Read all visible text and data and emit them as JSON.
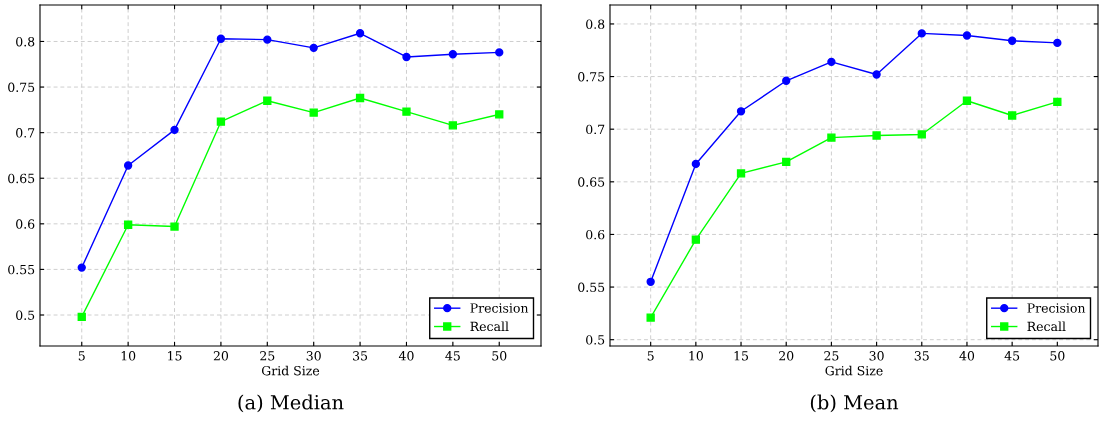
{
  "chart_data": [
    {
      "type": "line",
      "title": "(a) Median",
      "xlabel": "Grid Size",
      "x": [
        5,
        10,
        15,
        20,
        25,
        30,
        35,
        40,
        45,
        50
      ],
      "xlim": [
        0.5,
        54.5
      ],
      "xticks": [
        5,
        10,
        15,
        20,
        25,
        30,
        35,
        40,
        45,
        50
      ],
      "ylim": [
        0.466,
        0.84
      ],
      "yticks": [
        0.5,
        0.55,
        0.6,
        0.65,
        0.7,
        0.75,
        0.8
      ],
      "grid": true,
      "legend": "bottom right",
      "series": [
        {
          "name": "Precision",
          "color": "#0000ff",
          "marker": "circle",
          "values": [
            0.552,
            0.664,
            0.703,
            0.803,
            0.802,
            0.793,
            0.809,
            0.783,
            0.786,
            0.788
          ]
        },
        {
          "name": "Recall",
          "color": "#00ff00",
          "marker": "square",
          "values": [
            0.498,
            0.599,
            0.597,
            0.712,
            0.735,
            0.722,
            0.738,
            0.723,
            0.708,
            0.72
          ]
        }
      ]
    },
    {
      "type": "line",
      "title": "(b) Mean",
      "xlabel": "Grid Size",
      "x": [
        5,
        10,
        15,
        20,
        25,
        30,
        35,
        40,
        45,
        50
      ],
      "xlim": [
        0.5,
        54.5
      ],
      "xticks": [
        5,
        10,
        15,
        20,
        25,
        30,
        35,
        40,
        45,
        50
      ],
      "ylim": [
        0.494,
        0.818
      ],
      "yticks": [
        0.5,
        0.55,
        0.6,
        0.65,
        0.7,
        0.75,
        0.8
      ],
      "grid": true,
      "legend": "bottom right",
      "series": [
        {
          "name": "Precision",
          "color": "#0000ff",
          "marker": "circle",
          "values": [
            0.555,
            0.667,
            0.717,
            0.746,
            0.764,
            0.752,
            0.791,
            0.789,
            0.784,
            0.782
          ]
        },
        {
          "name": "Recall",
          "color": "#00ff00",
          "marker": "square",
          "values": [
            0.521,
            0.595,
            0.658,
            0.669,
            0.692,
            0.694,
            0.695,
            0.727,
            0.713,
            0.726
          ]
        }
      ]
    }
  ]
}
